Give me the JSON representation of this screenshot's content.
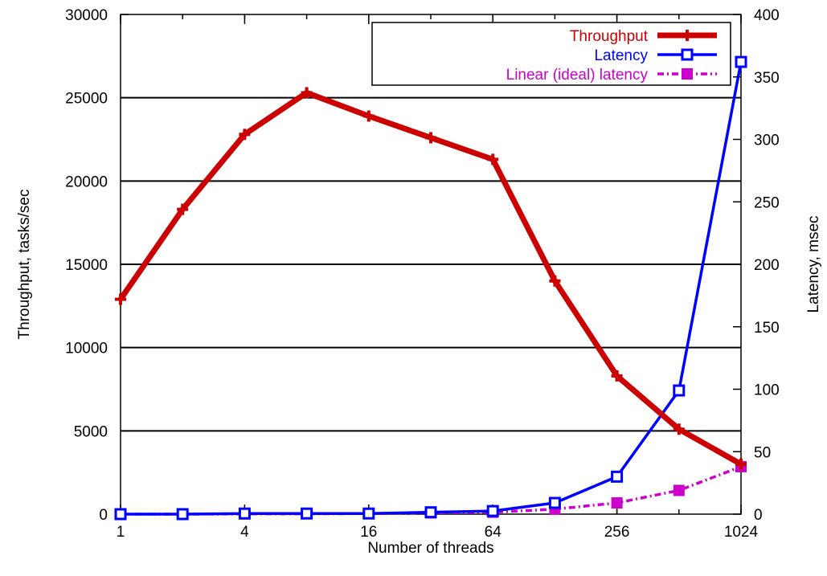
{
  "chart_data": {
    "type": "line",
    "title": "",
    "xlabel": "Number of threads",
    "ylabel": "Throughput, tasks/sec",
    "y2label": "Latency, msec",
    "x_scale": "log2",
    "x": [
      1,
      2,
      4,
      8,
      16,
      32,
      64,
      128,
      256,
      512,
      1024
    ],
    "x_ticks": [
      "1",
      "4",
      "16",
      "64",
      "256",
      "1024"
    ],
    "xlim": [
      1,
      1024
    ],
    "ylim": [
      0,
      30000
    ],
    "y2lim": [
      0,
      400
    ],
    "y_ticks": [
      "0",
      "5000",
      "10000",
      "15000",
      "20000",
      "25000",
      "30000"
    ],
    "y2_ticks": [
      "0",
      "50",
      "100",
      "150",
      "200",
      "250",
      "300",
      "350",
      "400"
    ],
    "grid": true,
    "legend_position": "top-right",
    "series": [
      {
        "name": "Throughput",
        "axis": "left",
        "color": "#cc0000",
        "marker": "plus",
        "values": [
          12900,
          18300,
          22800,
          25300,
          23900,
          22600,
          21300,
          14000,
          8300,
          5100,
          3000
        ]
      },
      {
        "name": "Latency",
        "axis": "right",
        "color": "#0000ff",
        "marker": "open-square",
        "values": [
          0,
          0,
          0.5,
          0.5,
          0.5,
          1.5,
          2.5,
          9,
          30,
          99,
          362
        ]
      },
      {
        "name": "Linear (ideal) latency",
        "axis": "right",
        "color": "#cc00cc",
        "marker": "filled-square",
        "values": [
          0,
          0,
          0.2,
          0.3,
          0.5,
          1,
          1.5,
          4,
          9,
          19,
          38
        ]
      }
    ]
  }
}
